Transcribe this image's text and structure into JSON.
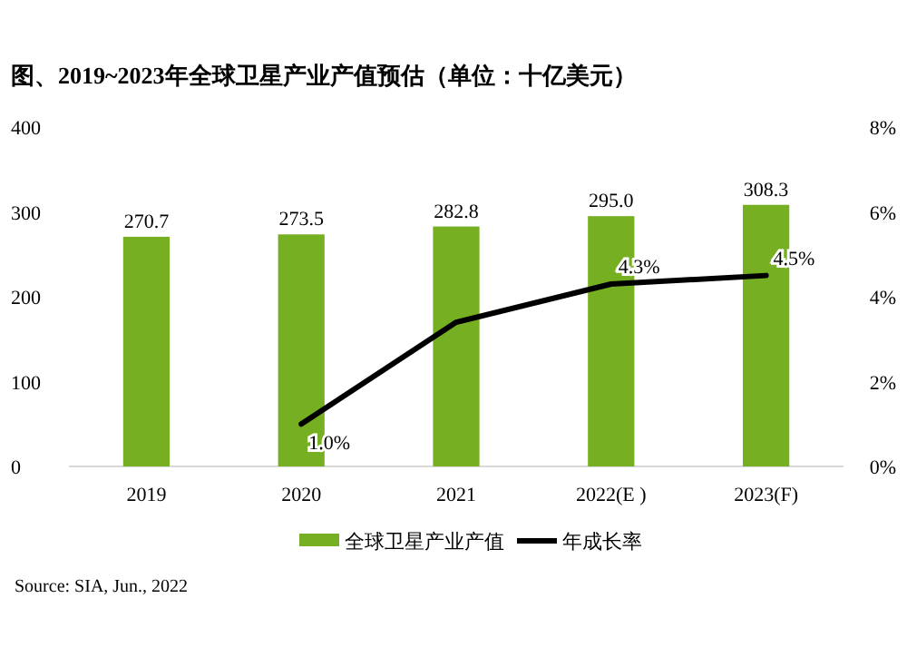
{
  "chart_data": {
    "type": "bar",
    "title": "图、2019~2023年全球卫星产业产值预估（单位：十亿美元）",
    "categories": [
      "2019",
      "2020",
      "2021",
      "2022(E )",
      "2023(F)"
    ],
    "series": [
      {
        "name": "全球卫星产业产值",
        "color": "#76b022",
        "values": [
          270.7,
          273.5,
          282.8,
          295.0,
          308.3
        ],
        "value_labels": [
          "270.7",
          "273.5",
          "282.8",
          "295.0",
          "308.3"
        ]
      },
      {
        "name": "年成长率",
        "type": "line",
        "axis": "y2",
        "color": "#000000",
        "values": [
          null,
          1.0,
          3.4,
          4.3,
          4.5
        ],
        "value_labels": [
          null,
          "1.0%",
          null,
          "4.3%",
          "4.5%"
        ]
      }
    ],
    "ylim": [
      0,
      400
    ],
    "yticks": [
      0,
      100,
      200,
      300,
      400
    ],
    "y2lim": [
      0,
      8
    ],
    "y2ticks": [
      {
        "value": 0,
        "label": "0%"
      },
      {
        "value": 2,
        "label": "2%"
      },
      {
        "value": 4,
        "label": "4%"
      },
      {
        "value": 6,
        "label": "6%"
      },
      {
        "value": 8,
        "label": "8%"
      }
    ],
    "legend": "bottom",
    "marker": "none",
    "annotations": [
      "Source: SIA, Jun., 2022"
    ]
  }
}
